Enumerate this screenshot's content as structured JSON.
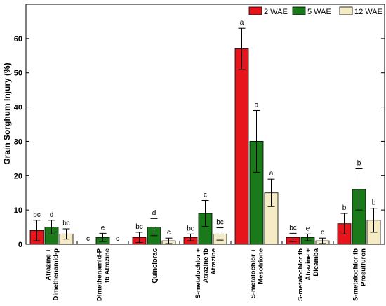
{
  "chart_data": {
    "type": "bar",
    "ylabel": "Grain Sorghum Injury (%)",
    "ylim": [
      0,
      70
    ],
    "yticks": [
      0,
      10,
      20,
      30,
      40,
      50,
      60
    ],
    "legend_position": "top-right",
    "categories": [
      [
        "Atrazine +",
        "Dimethenamid-p"
      ],
      [
        "Dimethenamid-P",
        "fb Atrazine"
      ],
      [
        "Quinclorac"
      ],
      [
        "S-metalochlor +",
        "Atrazine fb",
        "Atrazine"
      ],
      [
        "S-metalochlor +",
        "Mesotrione"
      ],
      [
        "S-metalochlor fb",
        "Atrazine +",
        "Dicamba"
      ],
      [
        "S-metalochlor fb",
        "Prosulfuron"
      ]
    ],
    "series": [
      {
        "name": "2 WAE",
        "color": "#e8141b",
        "values": [
          4,
          0,
          2,
          2,
          57,
          2,
          6
        ],
        "errors": [
          3,
          0,
          1.5,
          1,
          6,
          1.2,
          3
        ],
        "letters": [
          "bc",
          "c",
          "bc",
          "bc",
          "a",
          "bc",
          "b"
        ]
      },
      {
        "name": "5 WAE",
        "color": "#1a7a1a",
        "values": [
          5,
          2,
          5,
          9,
          30,
          2,
          16
        ],
        "errors": [
          2,
          1.2,
          2.5,
          3.8,
          9,
          1,
          6
        ],
        "letters": [
          "d",
          "e",
          "d",
          "c",
          "a",
          "e",
          "b"
        ]
      },
      {
        "name": "12 WAE",
        "color": "#f5ebc4",
        "values": [
          3,
          0,
          1,
          3,
          15,
          1,
          7
        ],
        "errors": [
          1.5,
          0,
          0.8,
          1.8,
          4,
          0.8,
          3.5
        ],
        "letters": [
          "bc",
          "c",
          "c",
          "bc",
          "a",
          "c",
          "b"
        ]
      }
    ]
  }
}
